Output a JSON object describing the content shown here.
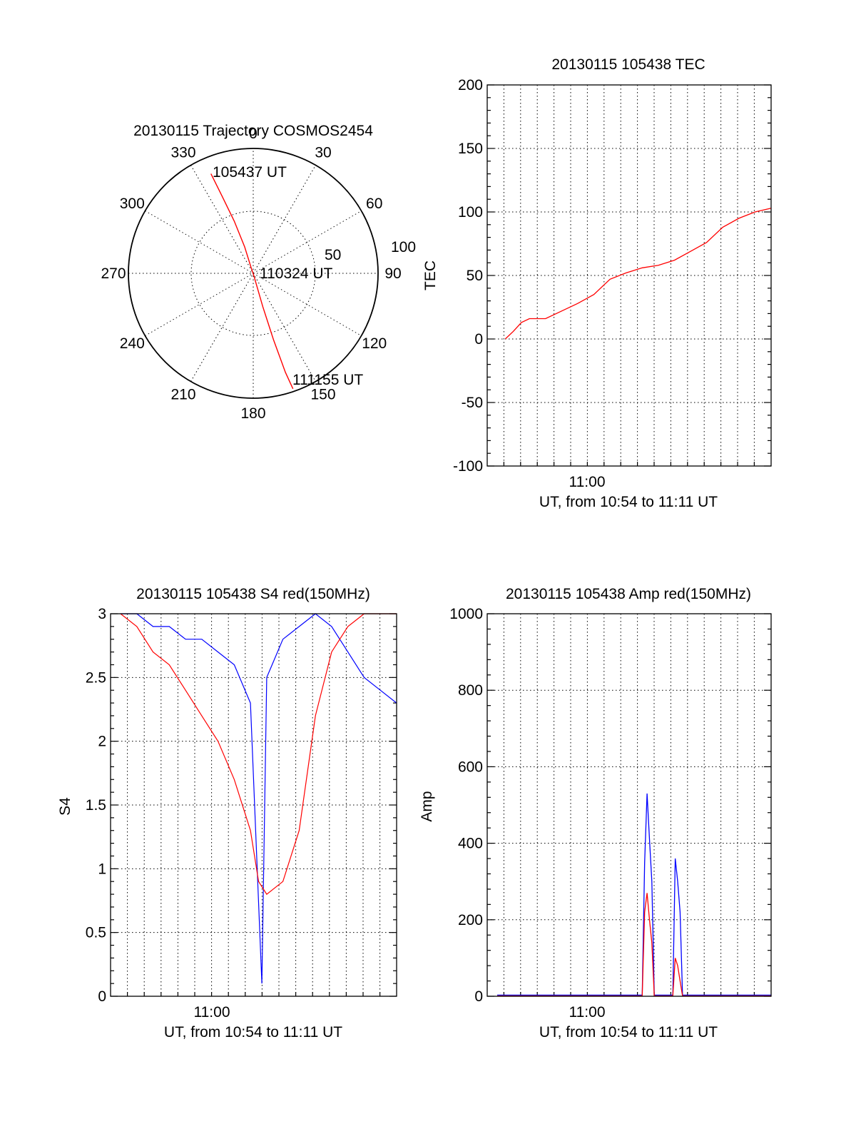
{
  "chart_data": [
    {
      "id": "polar",
      "type": "scatter",
      "title": "20130115 Trajectory COSMOS2454",
      "azimuth_labels": [
        "0",
        "30",
        "60",
        "90",
        "120",
        "150",
        "180",
        "210",
        "240",
        "270",
        "300",
        "330"
      ],
      "elevation_ring_labels": [
        "50",
        "100"
      ],
      "track_color": "#ff0000",
      "track": [
        {
          "az": 337,
          "zenith": 78
        },
        {
          "az": 338,
          "zenith": 60
        },
        {
          "az": 340,
          "zenith": 40
        },
        {
          "az": 342,
          "zenith": 20
        },
        {
          "az": 340,
          "zenith": 5
        },
        {
          "az": 165,
          "zenith": 2
        },
        {
          "az": 164,
          "zenith": 25
        },
        {
          "az": 163,
          "zenith": 50
        },
        {
          "az": 162,
          "zenith": 75
        },
        {
          "az": 161,
          "zenith": 88
        }
      ],
      "annotations": [
        {
          "text": "105437 UT",
          "at": "start"
        },
        {
          "text": "110324 UT",
          "at": "center"
        },
        {
          "text": "111155 UT",
          "at": "end"
        }
      ]
    },
    {
      "id": "tec",
      "type": "line",
      "title": "20130115 105438 TEC",
      "xlabel": "UT, from 10:54 to 11:11 UT",
      "ylabel": "TEC",
      "xtick_labels": [
        "11:00"
      ],
      "ytick_labels": [
        "200",
        "150",
        "100",
        "50",
        "0",
        "-50",
        "-100"
      ],
      "ylim": [
        -100,
        200
      ],
      "grid": true,
      "series": [
        {
          "color": "#ff0000",
          "t_min": [
            0.5,
            1.0,
            1.5,
            2.0,
            3.0,
            4.0,
            5.0,
            6.0,
            7.0,
            8.0,
            9.0,
            10.0,
            11.0,
            12.0,
            13.0,
            14.0,
            15.0,
            16.0,
            17.0
          ],
          "values": [
            0,
            6,
            13,
            16,
            16,
            22,
            28,
            35,
            47,
            52,
            56,
            58,
            62,
            69,
            76,
            88,
            95,
            100,
            103
          ]
        }
      ]
    },
    {
      "id": "s4",
      "type": "line",
      "title": "20130115 105438 S4 red(150MHz)",
      "xlabel": "UT, from 10:54 to 11:11 UT",
      "ylabel": "S4",
      "xtick_labels": [
        "11:00"
      ],
      "ytick_labels": [
        "3",
        "2.5",
        "2",
        "1.5",
        "1",
        "0.5",
        "0"
      ],
      "ylim": [
        0,
        3
      ],
      "grid": true,
      "series": [
        {
          "color": "#0000ff",
          "t_min": [
            0,
            1,
            2,
            3,
            4,
            5,
            6,
            7,
            8,
            8.7,
            9,
            10,
            11,
            12,
            13,
            14,
            15,
            16,
            17
          ],
          "values": [
            3.0,
            3.0,
            2.9,
            2.9,
            2.8,
            2.8,
            2.7,
            2.6,
            2.3,
            0.1,
            2.5,
            2.8,
            2.9,
            3.0,
            2.9,
            2.7,
            2.5,
            2.4,
            2.3
          ]
        },
        {
          "color": "#ff0000",
          "t_min": [
            0,
            1,
            2,
            3,
            4,
            5,
            6,
            7,
            8,
            8.5,
            9,
            10,
            11,
            12,
            13,
            14,
            15,
            16,
            17
          ],
          "values": [
            3.0,
            2.9,
            2.7,
            2.6,
            2.4,
            2.2,
            2.0,
            1.7,
            1.3,
            0.9,
            0.8,
            0.9,
            1.3,
            2.2,
            2.7,
            2.9,
            3.0,
            3.0,
            3.0
          ]
        }
      ]
    },
    {
      "id": "amp",
      "type": "line",
      "title": "20130115 105438 Amp red(150MHz)",
      "xlabel": "UT, from 10:54 to 11:11 UT",
      "ylabel": "Amp",
      "xtick_labels": [
        "11:00"
      ],
      "ytick_labels": [
        "1000",
        "800",
        "600",
        "400",
        "200",
        "0"
      ],
      "ylim": [
        0,
        1000
      ],
      "grid": true,
      "series": [
        {
          "color": "#0000ff",
          "t_min": [
            0,
            9.0,
            9.15,
            9.3,
            9.45,
            9.6,
            9.75,
            10.5,
            10.9,
            11.05,
            11.2,
            11.35,
            11.5,
            17
          ],
          "values": [
            3,
            3,
            350,
            530,
            410,
            300,
            3,
            3,
            3,
            360,
            300,
            220,
            3,
            3
          ]
        },
        {
          "color": "#ff0000",
          "t_min": [
            0,
            9.0,
            9.15,
            9.3,
            9.45,
            9.6,
            9.75,
            10.5,
            10.9,
            11.05,
            11.2,
            11.35,
            11.5,
            17
          ],
          "values": [
            1,
            1,
            220,
            270,
            200,
            140,
            1,
            1,
            1,
            100,
            80,
            40,
            1,
            1
          ]
        }
      ]
    }
  ]
}
